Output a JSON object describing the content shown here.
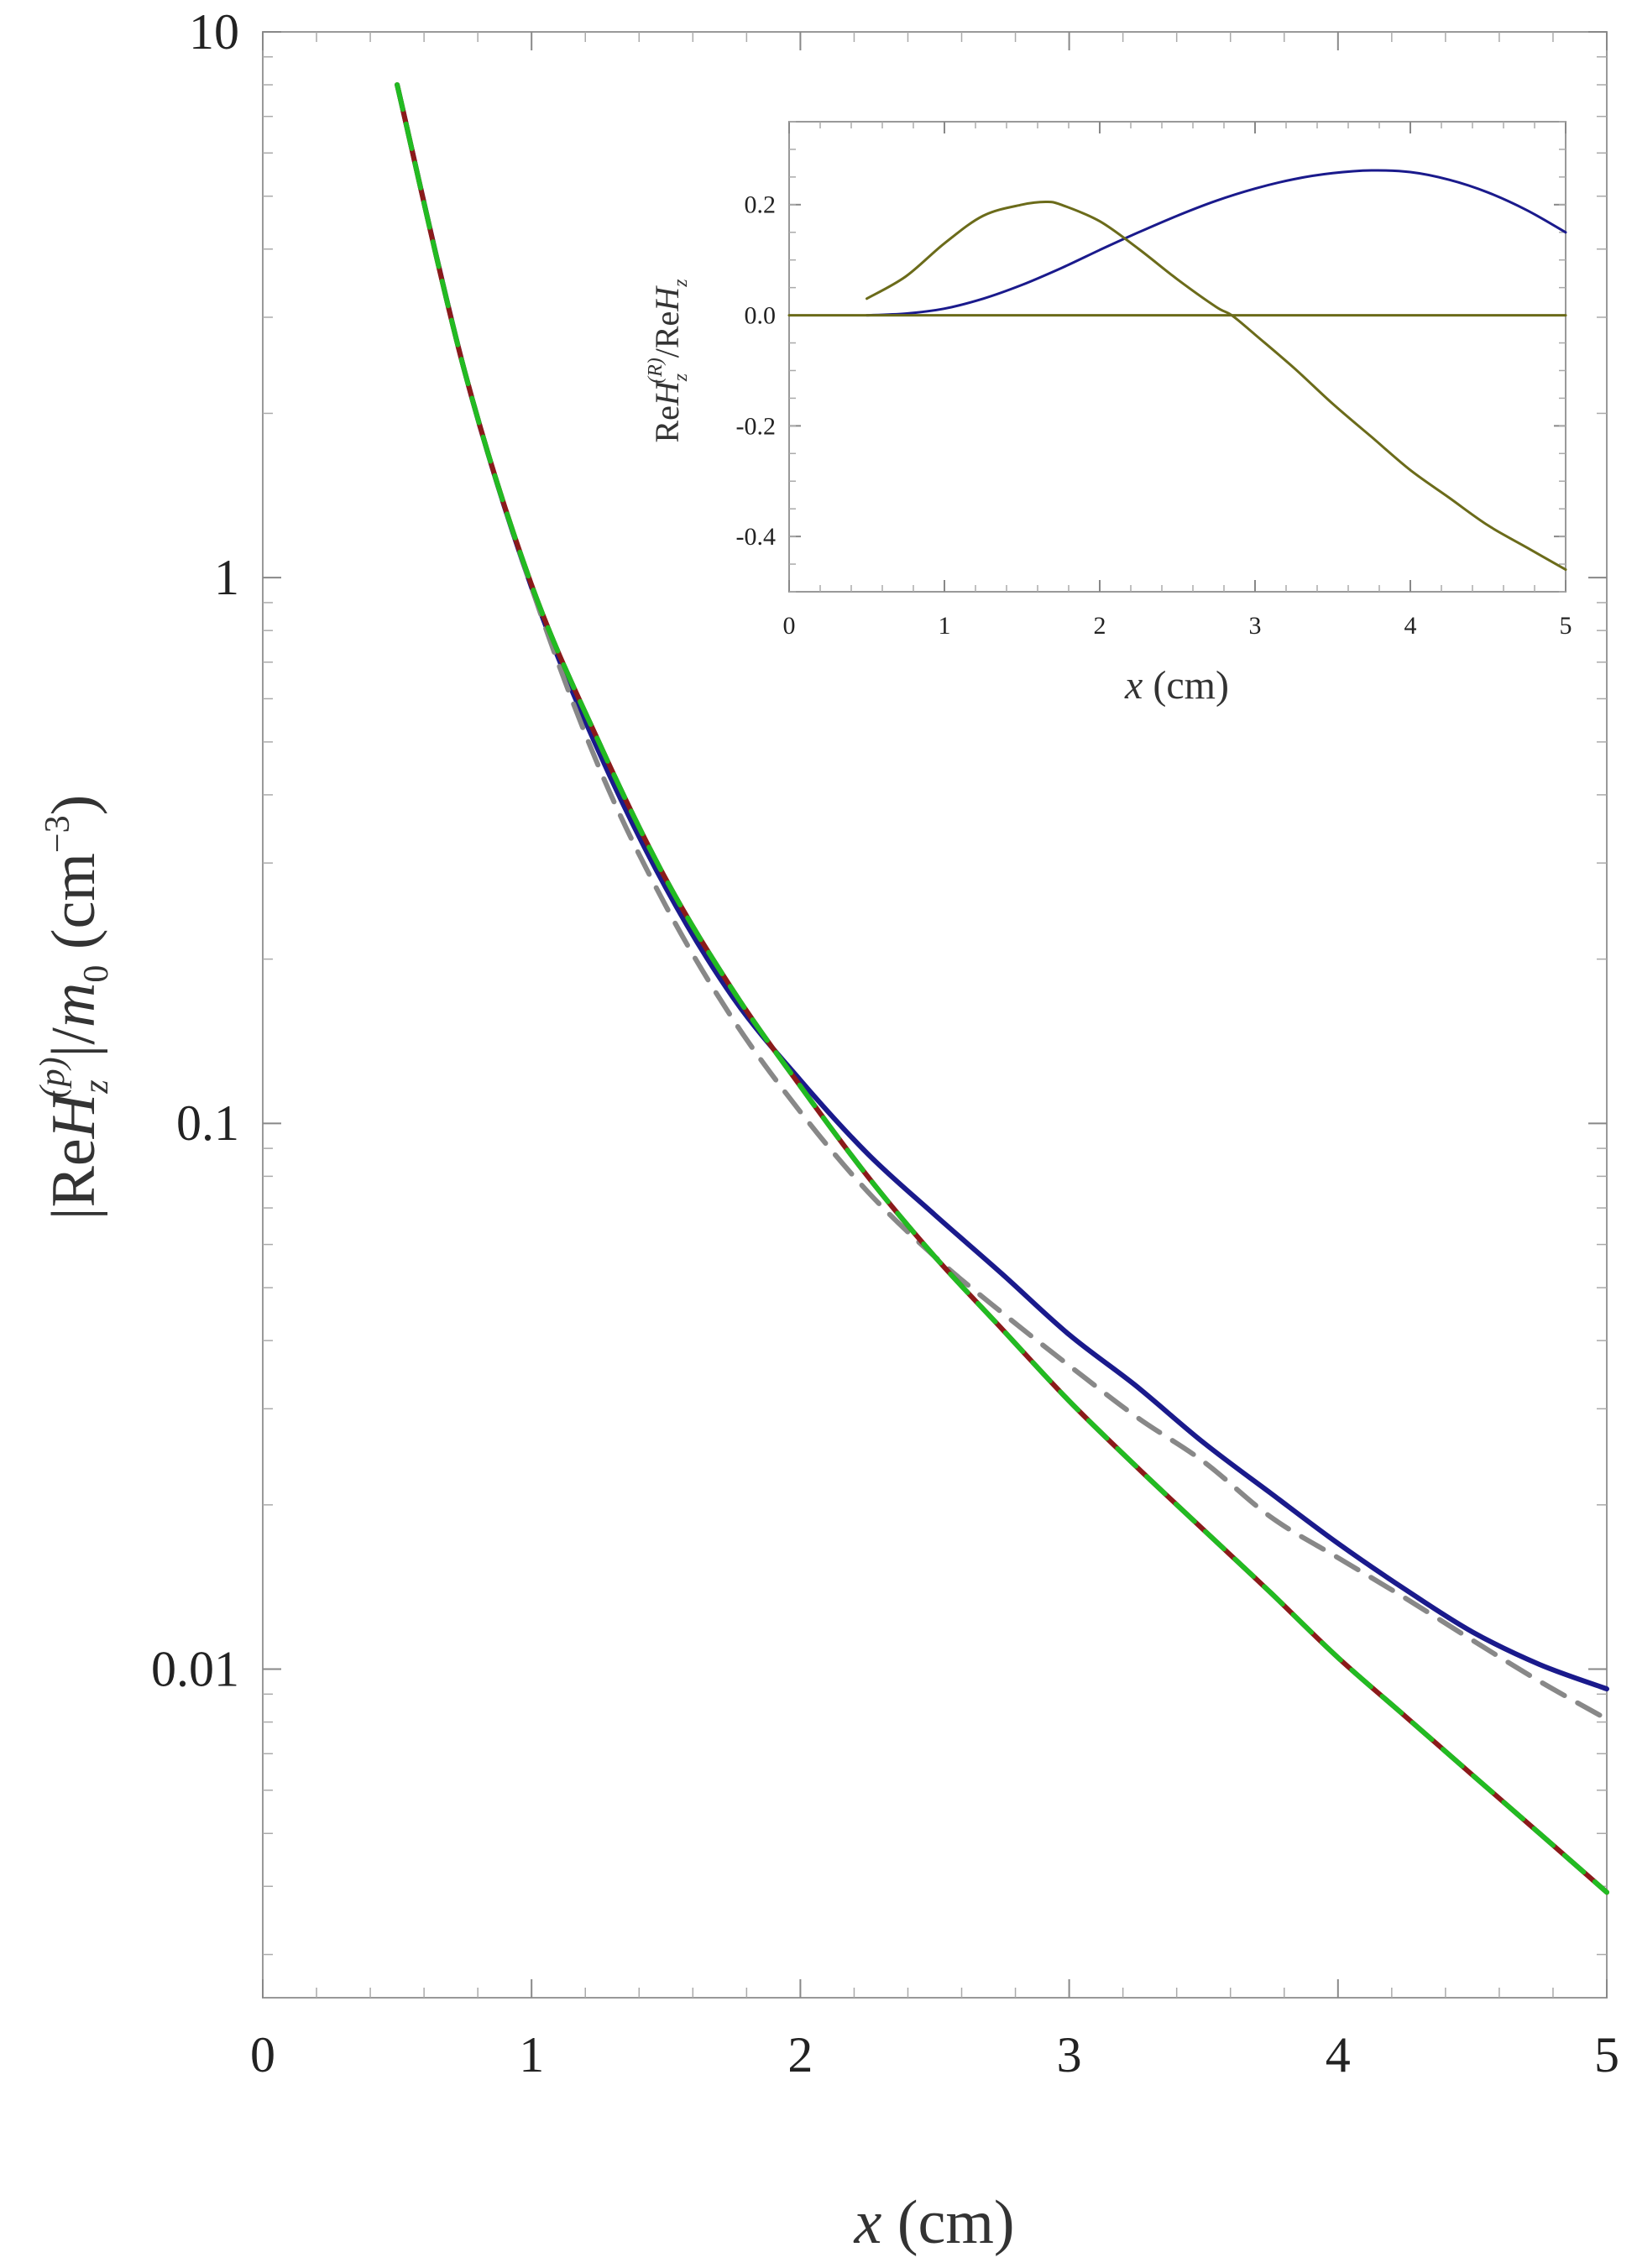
{
  "chart_data": [
    {
      "type": "line",
      "role": "main",
      "yscale": "log",
      "xlim": [
        0,
        5
      ],
      "ylim": [
        0.0025,
        10
      ],
      "xticks": [
        0,
        1,
        2,
        3,
        4,
        5
      ],
      "xtick_labels": [
        "0",
        "1",
        "2",
        "3",
        "4",
        "5"
      ],
      "yticks": [
        0.01,
        0.1,
        1,
        10
      ],
      "ytick_labels": [
        "0.01",
        "0.1",
        "1",
        "10"
      ],
      "xlabel": {
        "var": "x",
        "unit": " (cm)"
      },
      "ylabel": {
        "open": "|Re",
        "H": "H",
        "sub": "z",
        "sup": "(p)",
        "mid": "|/",
        "m": "m",
        "m_sub": "0",
        "unit": " (cm",
        "unit_sup": "−3",
        "close": ")"
      },
      "grid": false,
      "series": [
        {
          "color": "#1a1a8c",
          "style": "solid",
          "x": [
            0.5,
            0.75,
            1,
            1.25,
            1.5,
            1.75,
            2,
            2.25,
            2.5,
            2.75,
            3,
            3.25,
            3.5,
            3.75,
            4,
            4.25,
            4.5,
            4.75,
            5
          ],
          "y": [
            8,
            2.4,
            0.96,
            0.48,
            0.27,
            0.17,
            0.12,
            0.088,
            0.068,
            0.053,
            0.041,
            0.033,
            0.026,
            0.021,
            0.017,
            0.014,
            0.0117,
            0.0102,
            0.0092
          ]
        },
        {
          "color": "#888888",
          "style": "dashed",
          "x": [
            0.5,
            0.75,
            1,
            1.25,
            1.5,
            1.75,
            2,
            2.25,
            2.5,
            2.75,
            3,
            3.25,
            3.5,
            3.75,
            4,
            4.25,
            4.5,
            4.75,
            5
          ],
          "y": [
            8,
            2.4,
            0.96,
            0.45,
            0.25,
            0.155,
            0.105,
            0.075,
            0.057,
            0.045,
            0.036,
            0.029,
            0.024,
            0.019,
            0.016,
            0.0135,
            0.0113,
            0.0095,
            0.0081
          ]
        },
        {
          "color": "#8b1a1a",
          "style": "solid",
          "x": [
            0.5,
            0.75,
            1,
            1.25,
            1.5,
            1.75,
            2,
            2.25,
            2.5,
            2.75,
            3,
            3.25,
            3.5,
            3.75,
            4,
            4.25,
            4.5,
            4.75,
            5
          ],
          "y": [
            8,
            2.4,
            0.97,
            0.5,
            0.28,
            0.175,
            0.117,
            0.08,
            0.057,
            0.042,
            0.031,
            0.0235,
            0.018,
            0.0138,
            0.0105,
            0.0082,
            0.0064,
            0.005,
            0.0039
          ]
        },
        {
          "color": "#22bb22",
          "style": "dashed",
          "x": [
            0.5,
            0.75,
            1,
            1.25,
            1.5,
            1.75,
            2,
            2.25,
            2.5,
            2.75,
            3,
            3.25,
            3.5,
            3.75,
            4,
            4.25,
            4.5,
            4.75,
            5
          ],
          "y": [
            8,
            2.4,
            0.97,
            0.5,
            0.28,
            0.175,
            0.117,
            0.08,
            0.057,
            0.042,
            0.031,
            0.0235,
            0.018,
            0.0138,
            0.0105,
            0.0082,
            0.0064,
            0.005,
            0.0039
          ]
        }
      ]
    },
    {
      "type": "line",
      "role": "inset",
      "xlim": [
        0,
        5
      ],
      "ylim": [
        -0.5,
        0.35
      ],
      "xticks": [
        0,
        1,
        2,
        3,
        4,
        5
      ],
      "xtick_labels": [
        "0",
        "1",
        "2",
        "3",
        "4",
        "5"
      ],
      "yticks": [
        -0.4,
        -0.2,
        0,
        0.2
      ],
      "ytick_labels": [
        "-0.4",
        "-0.2",
        "0.0",
        "0.2"
      ],
      "xlabel": {
        "var": "x",
        "unit": " (cm)"
      },
      "ylabel": {
        "re1": "Re",
        "H1": "H",
        "sub1": "z",
        "sup1": "(R)",
        "slash": "/Re",
        "H2": "H",
        "sub2": "z"
      },
      "grid": false,
      "series": [
        {
          "color": "#1a1a8c",
          "style": "solid",
          "x": [
            0.5,
            0.75,
            1,
            1.25,
            1.5,
            1.75,
            2,
            2.25,
            2.5,
            2.75,
            3,
            3.25,
            3.5,
            3.75,
            4,
            4.25,
            4.5,
            4.75,
            5
          ],
          "y": [
            0,
            0.003,
            0.012,
            0.03,
            0.055,
            0.085,
            0.118,
            0.15,
            0.18,
            0.207,
            0.229,
            0.246,
            0.257,
            0.262,
            0.259,
            0.245,
            0.222,
            0.19,
            0.15
          ]
        },
        {
          "color": "#6b6b1a",
          "style": "solid",
          "x": [
            0.5,
            0.75,
            1,
            1.25,
            1.5,
            1.65,
            1.75,
            2,
            2.25,
            2.5,
            2.75,
            2.85,
            3,
            3.25,
            3.5,
            3.75,
            4,
            4.25,
            4.5,
            4.75,
            5
          ],
          "y": [
            0.03,
            0.07,
            0.13,
            0.18,
            0.2,
            0.205,
            0.2,
            0.17,
            0.12,
            0.065,
            0.015,
            0,
            -0.035,
            -0.095,
            -0.16,
            -0.22,
            -0.28,
            -0.33,
            -0.38,
            -0.42,
            -0.46
          ]
        },
        {
          "color": "#6b6b1a",
          "style": "solid",
          "x": [
            0,
            5
          ],
          "y": [
            0,
            0
          ]
        }
      ]
    }
  ]
}
